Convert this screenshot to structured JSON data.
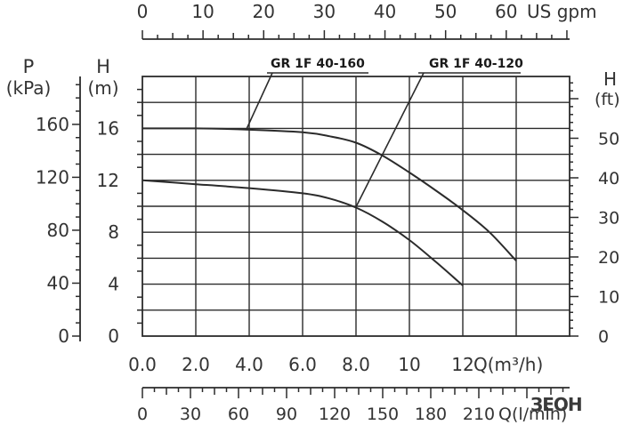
{
  "chart_data": {
    "type": "line",
    "x_unit_label": "Q(m³/h)",
    "x_ticks": [
      "0.0",
      "2.0",
      "4.0",
      "6.0",
      "8.0",
      "10",
      "12"
    ],
    "x_range": [
      0,
      16
    ],
    "h_left_label": [
      "H",
      "(m)"
    ],
    "h_left_ticks": [
      "0",
      "4",
      "8",
      "12",
      "16"
    ],
    "y_range": [
      0,
      20
    ],
    "p_label": [
      "P",
      "(kPa)"
    ],
    "p_ticks": [
      "0",
      "40",
      "80",
      "120",
      "160"
    ],
    "h_right_label": [
      "H",
      "(ft)"
    ],
    "h_right_ticks": [
      "0",
      "10",
      "20",
      "30",
      "40",
      "50"
    ],
    "top_axis": {
      "unit_label": "US gpm",
      "ticks": [
        "0",
        "10",
        "20",
        "30",
        "40",
        "50",
        "60"
      ]
    },
    "bottom_axis": {
      "unit_label": "Q(l/min)",
      "ticks": [
        "0",
        "30",
        "60",
        "90",
        "120",
        "150",
        "180",
        "210"
      ]
    },
    "series": [
      {
        "name": "GR 1F 40-160",
        "x": [
          0,
          2,
          4,
          6,
          7,
          8,
          9,
          10,
          11,
          12,
          13,
          14
        ],
        "y": [
          16.0,
          16.0,
          15.9,
          15.7,
          15.4,
          14.9,
          13.9,
          12.6,
          11.2,
          9.7,
          8.0,
          5.8
        ]
      },
      {
        "name": "GR 1F 40-120",
        "x": [
          0,
          2,
          4,
          6,
          7,
          8,
          9,
          10,
          11,
          12
        ],
        "y": [
          12.0,
          11.7,
          11.4,
          11.0,
          10.6,
          9.9,
          8.8,
          7.4,
          5.7,
          3.9
        ]
      }
    ],
    "watermark": "ЗЕОН"
  }
}
